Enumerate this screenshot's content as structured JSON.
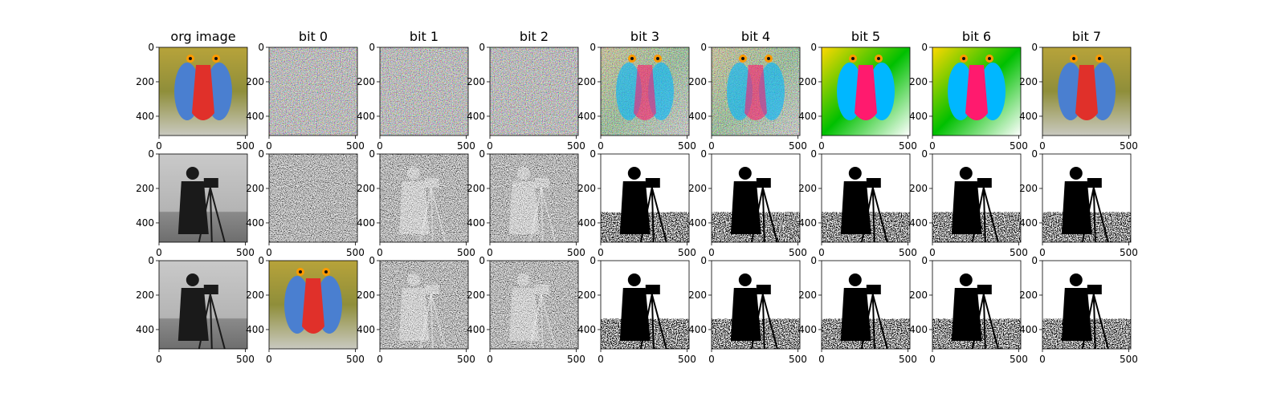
{
  "chart_data": {
    "type": "image-grid",
    "column_titles": [
      "org image",
      "bit 0",
      "bit 1",
      "bit 2",
      "bit 3",
      "bit 4",
      "bit 5",
      "bit 6",
      "bit 7"
    ],
    "rows": [
      [
        "mandrill-color",
        "noise-color",
        "noise-color",
        "noise-color",
        "mandrill-bitplane-color",
        "mandrill-bitplane-color",
        "mandrill-saturated-color",
        "mandrill-saturated-color",
        "mandrill-color"
      ],
      [
        "cameraman-gray",
        "noise-gray",
        "cameraman-bitplane-gray",
        "cameraman-bitplane-gray",
        "cameraman-bitplane-binary",
        "cameraman-bitplane-binary",
        "cameraman-bitplane-binary",
        "cameraman-bitplane-binary",
        "cameraman-bitplane-binary"
      ],
      [
        "cameraman-gray",
        "mandrill-color",
        "cameraman-bitplane-gray",
        "cameraman-bitplane-gray",
        "cameraman-bitplane-binary",
        "cameraman-bitplane-binary",
        "cameraman-bitplane-binary",
        "cameraman-bitplane-binary",
        "cameraman-bitplane-binary"
      ]
    ],
    "x_ticks": [
      0,
      500
    ],
    "y_ticks": [
      0,
      200,
      400
    ],
    "axis_range": [
      0,
      512
    ]
  }
}
